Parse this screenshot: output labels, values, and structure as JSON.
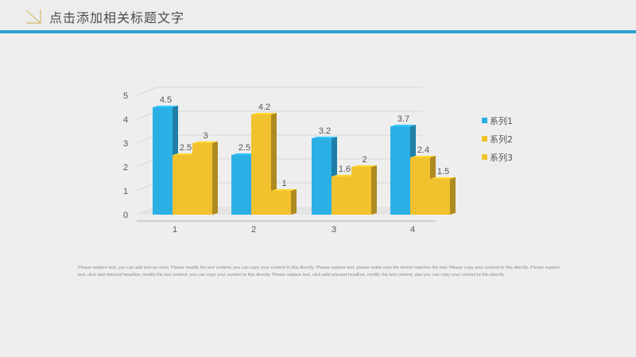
{
  "header": {
    "title": "点击添加相关标题文字",
    "accent_color": "#2f9fd0",
    "logo_icon": "corner-logo-icon"
  },
  "chart_data": {
    "type": "bar",
    "categories": [
      "1",
      "2",
      "3",
      "4"
    ],
    "series": [
      {
        "name": "系列1",
        "values": [
          4.5,
          2.5,
          3.2,
          3.7
        ],
        "color": "#2bb0e6"
      },
      {
        "name": "系列2",
        "values": [
          2.5,
          4.2,
          1.6,
          2.4
        ],
        "color": "#f2c12e"
      },
      {
        "name": "系列3",
        "values": [
          3,
          1,
          2,
          1.5
        ],
        "color": "#f2c12e"
      }
    ],
    "data_labels": [
      [
        "4.5",
        "2.5",
        "3.2",
        "3.7"
      ],
      [
        "2.5",
        "4.2",
        "1.6",
        "2.4"
      ],
      [
        "3",
        "1",
        "2",
        "1.5"
      ]
    ],
    "y_ticks": [
      "0",
      "1",
      "2",
      "3",
      "4",
      "5"
    ],
    "ylim": [
      0,
      5
    ],
    "grid": true,
    "style": "3d",
    "legend_position": "right"
  },
  "body_text": "Please replace text, you can add text as need. Please modify the text content, you can copy your content to this directly. Please replace text, please make sure the theme matches the text. Please copy your content to this directly. Please replace text, click add relevant headline, modify the text content, you can copy your content to this directly. Please replace text, click add relevant headline, modify the text content, also you can copy your content to this directly."
}
